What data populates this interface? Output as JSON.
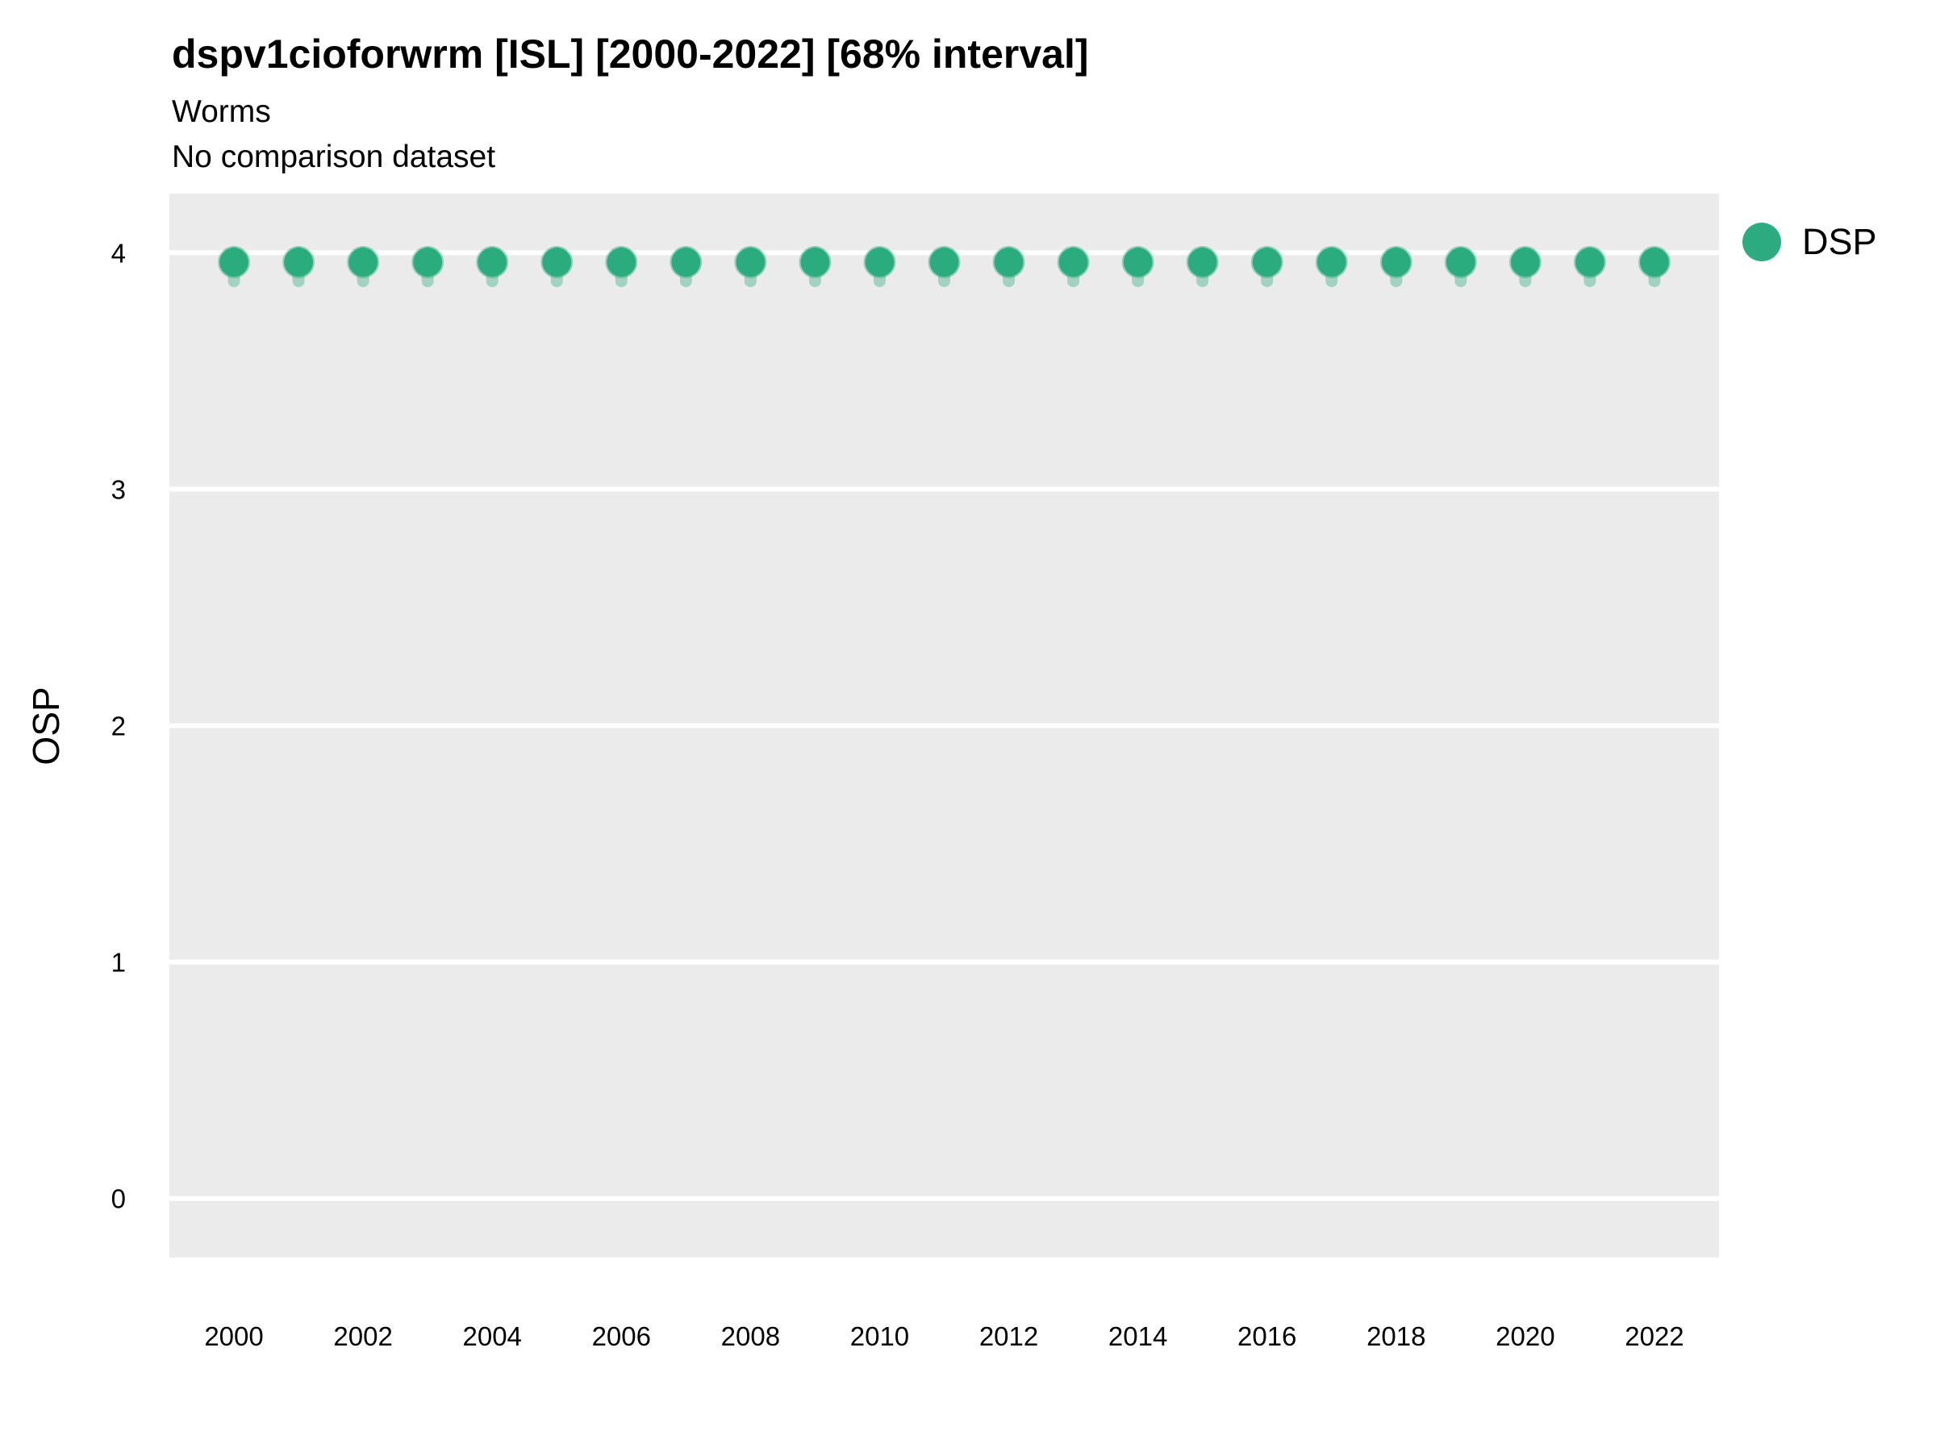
{
  "header": {
    "title": "dspv1cioforwrm [ISL] [2000-2022] [68% interval]",
    "subtitle": "Worms",
    "note": "No comparison dataset"
  },
  "chart_data": {
    "type": "scatter",
    "variant": "pointrange",
    "title": "dspv1cioforwrm [ISL] [2000-2022] [68% interval]",
    "subtitle": "Worms",
    "note": "No comparison dataset",
    "xlabel": "",
    "ylabel": "OSP",
    "interval_label": "68% interval",
    "x": [
      2000,
      2001,
      2002,
      2003,
      2004,
      2005,
      2006,
      2007,
      2008,
      2009,
      2010,
      2011,
      2012,
      2013,
      2014,
      2015,
      2016,
      2017,
      2018,
      2019,
      2020,
      2021,
      2022
    ],
    "series": [
      {
        "name": "DSP",
        "values": [
          3.96,
          3.96,
          3.96,
          3.96,
          3.96,
          3.96,
          3.96,
          3.96,
          3.96,
          3.96,
          3.96,
          3.96,
          3.96,
          3.96,
          3.96,
          3.96,
          3.96,
          3.96,
          3.96,
          3.96,
          3.96,
          3.96,
          3.96
        ],
        "interval_low": [
          3.88,
          3.88,
          3.88,
          3.88,
          3.88,
          3.88,
          3.88,
          3.88,
          3.88,
          3.88,
          3.88,
          3.88,
          3.88,
          3.88,
          3.88,
          3.88,
          3.88,
          3.88,
          3.88,
          3.88,
          3.88,
          3.88,
          3.88
        ],
        "interval_high": [
          4.0,
          4.0,
          4.0,
          4.0,
          4.0,
          4.0,
          4.0,
          4.0,
          4.0,
          4.0,
          4.0,
          4.0,
          4.0,
          4.0,
          4.0,
          4.0,
          4.0,
          4.0,
          4.0,
          4.0,
          4.0,
          4.0,
          4.0
        ]
      }
    ],
    "xticks": [
      2000,
      2002,
      2004,
      2006,
      2008,
      2010,
      2012,
      2014,
      2016,
      2018,
      2020,
      2022
    ],
    "yticks": [
      0,
      1,
      2,
      3,
      4
    ],
    "xlim": [
      1999,
      2023
    ],
    "ylim": [
      -0.25,
      4.25
    ],
    "grid": {
      "major": "white",
      "minor": "none"
    },
    "legend": {
      "position": "right",
      "entries": [
        {
          "label": "DSP",
          "color": "#2BAB7F"
        }
      ]
    },
    "colors": {
      "point": "#2BAB7F",
      "point_halo": "rgba(46,173,128,0.45)",
      "interval": "rgba(46,173,128,0.38)",
      "panel": "#EBEBEB",
      "grid": "#FFFFFF",
      "text": "#000000"
    }
  }
}
